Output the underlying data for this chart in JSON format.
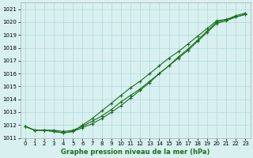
{
  "x": [
    0,
    1,
    2,
    3,
    4,
    5,
    6,
    7,
    8,
    9,
    10,
    11,
    12,
    13,
    14,
    15,
    16,
    17,
    18,
    19,
    20,
    21,
    22,
    23
  ],
  "line1": [
    1011.9,
    1011.6,
    1011.6,
    1011.6,
    1011.5,
    1011.6,
    1011.9,
    1012.3,
    1012.7,
    1013.2,
    1013.8,
    1014.3,
    1014.8,
    1015.4,
    1016.0,
    1016.6,
    1017.2,
    1017.8,
    1018.5,
    1019.2,
    1019.9,
    1020.1,
    1020.4,
    1020.6
  ],
  "line2": [
    1011.9,
    1011.6,
    1011.6,
    1011.5,
    1011.4,
    1011.5,
    1011.8,
    1012.1,
    1012.5,
    1013.0,
    1013.5,
    1014.1,
    1014.7,
    1015.3,
    1016.0,
    1016.6,
    1017.3,
    1017.9,
    1018.6,
    1019.3,
    1020.0,
    1020.2,
    1020.5,
    1020.7
  ],
  "line3": [
    1011.9,
    1011.6,
    1011.6,
    1011.5,
    1011.4,
    1011.5,
    1012.0,
    1012.5,
    1013.1,
    1013.7,
    1014.3,
    1014.9,
    1015.4,
    1016.0,
    1016.6,
    1017.2,
    1017.7,
    1018.3,
    1018.9,
    1019.5,
    1020.1,
    1020.2,
    1020.4,
    1020.6
  ],
  "ylim": [
    1011.0,
    1021.5
  ],
  "yticks": [
    1011,
    1012,
    1013,
    1014,
    1015,
    1016,
    1017,
    1018,
    1019,
    1020,
    1021
  ],
  "xlim": [
    -0.5,
    23.5
  ],
  "xticks": [
    0,
    1,
    2,
    3,
    4,
    5,
    6,
    7,
    8,
    9,
    10,
    11,
    12,
    13,
    14,
    15,
    16,
    17,
    18,
    19,
    20,
    21,
    22,
    23
  ],
  "xlabel": "Graphe pression niveau de la mer (hPa)",
  "line_color": "#1a6e1a",
  "bg_color": "#d8f0f0",
  "grid_color": "#b0d8d8",
  "marker": "+",
  "linewidth": 0.8,
  "markersize": 3,
  "tick_labelsize": 5,
  "xlabel_fontsize": 6,
  "figwidth": 3.2,
  "figheight": 2.0,
  "dpi": 100
}
